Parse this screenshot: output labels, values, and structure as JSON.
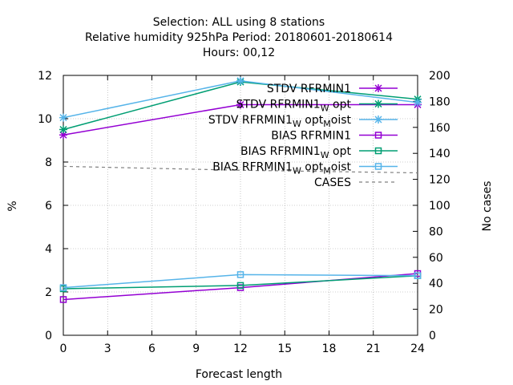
{
  "chart_data": {
    "type": "line",
    "title_lines": [
      "Selection: ALL using     8 stations",
      "Relative humidity 925hPa   Period: 20180601-20180614",
      "Hours:  00,12"
    ],
    "xlabel": "Forecast length",
    "ylabel": "%",
    "y2label": "No cases",
    "xlim": [
      0,
      24
    ],
    "ylim": [
      0,
      12
    ],
    "y2lim": [
      0,
      200
    ],
    "xticks": [
      "0",
      "3",
      "6",
      "9",
      "12",
      "15",
      "18",
      "21",
      "24"
    ],
    "yticks": [
      "0",
      "2",
      "4",
      "6",
      "8",
      "10",
      "12"
    ],
    "y2ticks": [
      "0",
      "20",
      "40",
      "60",
      "80",
      "100",
      "120",
      "140",
      "160",
      "180",
      "200"
    ],
    "grid": true,
    "legend_position": "top-right",
    "series": [
      {
        "name": "STDV RFRMIN1",
        "label_main": "STDV RFRMIN1",
        "label_sub": "",
        "label_after": "",
        "label_sub2": "",
        "label_end": "",
        "color": "#9400d3",
        "marker": "x",
        "dash": "",
        "axis": "y",
        "x": [
          0,
          12,
          24
        ],
        "values": [
          9.25,
          10.65,
          10.65
        ]
      },
      {
        "name": "STDV RFRMIN1 W opt",
        "label_main": "STDV RFRMIN1",
        "label_sub": "W",
        "label_after": "opt",
        "label_sub2": "",
        "label_end": "",
        "color": "#009e73",
        "marker": "x",
        "dash": "",
        "axis": "y",
        "x": [
          0,
          12,
          24
        ],
        "values": [
          9.5,
          11.7,
          10.9
        ]
      },
      {
        "name": "STDV RFRMIN1 W opt M oist",
        "label_main": "STDV RFRMIN1",
        "label_sub": "W",
        "label_after": "opt",
        "label_sub2": "M",
        "label_end": "oist",
        "color": "#56b4e9",
        "marker": "x",
        "dash": "",
        "axis": "y",
        "x": [
          0,
          12,
          24
        ],
        "values": [
          10.05,
          11.75,
          10.75
        ]
      },
      {
        "name": "BIAS RFRMIN1",
        "label_main": "BIAS RFRMIN1",
        "label_sub": "",
        "label_after": "",
        "label_sub2": "",
        "label_end": "",
        "color": "#9400d3",
        "marker": "square",
        "dash": "",
        "axis": "y",
        "x": [
          0,
          12,
          24
        ],
        "values": [
          1.65,
          2.2,
          2.85
        ]
      },
      {
        "name": "BIAS RFRMIN1 W opt",
        "label_main": "BIAS RFRMIN1",
        "label_sub": "W",
        "label_after": "opt",
        "label_sub2": "",
        "label_end": "",
        "color": "#009e73",
        "marker": "square",
        "dash": "",
        "axis": "y",
        "x": [
          0,
          12,
          24
        ],
        "values": [
          2.15,
          2.3,
          2.75
        ]
      },
      {
        "name": "BIAS RFRMIN1 W opt M oist",
        "label_main": "BIAS RFRMIN1",
        "label_sub": "W",
        "label_after": "opt",
        "label_sub2": "M",
        "label_end": "oist",
        "color": "#56b4e9",
        "marker": "square",
        "dash": "",
        "axis": "y",
        "x": [
          0,
          12,
          24
        ],
        "values": [
          2.2,
          2.8,
          2.75
        ]
      },
      {
        "name": "CASES",
        "label_main": "CASES",
        "label_sub": "",
        "label_after": "",
        "label_sub2": "",
        "label_end": "",
        "color": "#808080",
        "marker": "none",
        "dash": "4,4",
        "axis": "y2",
        "x": [
          0,
          12,
          24
        ],
        "values": [
          130,
          127,
          125
        ]
      }
    ]
  }
}
